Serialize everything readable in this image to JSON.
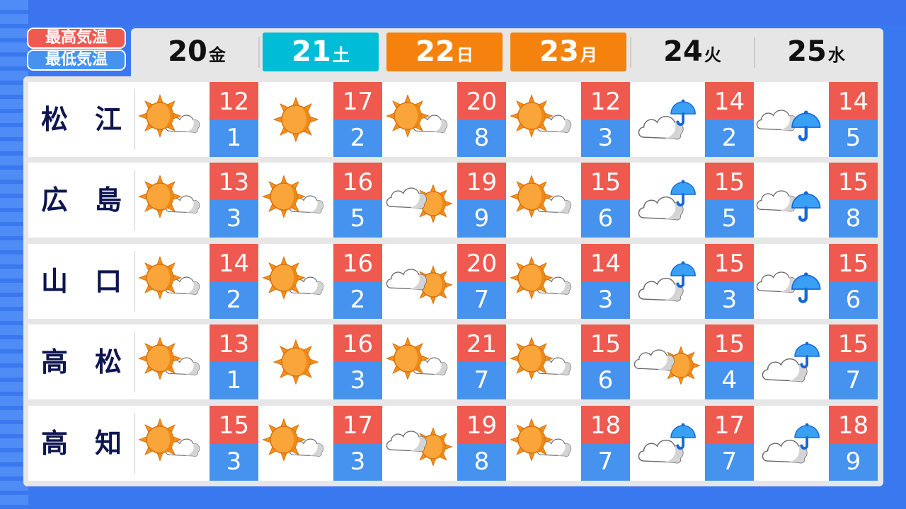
{
  "legend": {
    "high": "最高気温",
    "low": "最低気温"
  },
  "colors": {
    "high": "#ef5a50",
    "low": "#4593ee",
    "saturday": "#00bcd6",
    "holiday": "#f5820c",
    "city_text": "#0e1550"
  },
  "days": [
    {
      "date": "20",
      "weekday": "金",
      "style": "plain"
    },
    {
      "date": "21",
      "weekday": "土",
      "style": "sat"
    },
    {
      "date": "22",
      "weekday": "日",
      "style": "hol"
    },
    {
      "date": "23",
      "weekday": "月",
      "style": "hol"
    },
    {
      "date": "24",
      "weekday": "火",
      "style": "plain"
    },
    {
      "date": "25",
      "weekday": "水",
      "style": "plain"
    }
  ],
  "cities": [
    {
      "name": "松　江",
      "forecast": [
        {
          "icon": "sunny-then-cloudy",
          "high": "12",
          "low": "1"
        },
        {
          "icon": "sunny",
          "high": "17",
          "low": "2"
        },
        {
          "icon": "sunny-then-cloudy",
          "high": "20",
          "low": "8"
        },
        {
          "icon": "sunny-then-cloudy",
          "high": "12",
          "low": "3"
        },
        {
          "icon": "cloudy-chance-rain",
          "high": "14",
          "low": "2"
        },
        {
          "icon": "cloudy-then-rain",
          "high": "14",
          "low": "5"
        }
      ]
    },
    {
      "name": "広　島",
      "forecast": [
        {
          "icon": "sunny-then-cloudy",
          "high": "13",
          "low": "3"
        },
        {
          "icon": "sunny-then-cloudy",
          "high": "16",
          "low": "5"
        },
        {
          "icon": "cloudy-then-sunny",
          "high": "19",
          "low": "9"
        },
        {
          "icon": "sunny-then-cloudy",
          "high": "15",
          "low": "6"
        },
        {
          "icon": "cloudy-chance-rain",
          "high": "15",
          "low": "5"
        },
        {
          "icon": "cloudy-then-rain",
          "high": "15",
          "low": "8"
        }
      ]
    },
    {
      "name": "山　口",
      "forecast": [
        {
          "icon": "sunny-then-cloudy",
          "high": "14",
          "low": "2"
        },
        {
          "icon": "sunny-then-cloudy",
          "high": "16",
          "low": "2"
        },
        {
          "icon": "cloudy-then-sunny",
          "high": "20",
          "low": "7"
        },
        {
          "icon": "sunny-then-cloudy",
          "high": "14",
          "low": "3"
        },
        {
          "icon": "cloudy-chance-rain",
          "high": "15",
          "low": "3"
        },
        {
          "icon": "cloudy-then-rain",
          "high": "15",
          "low": "6"
        }
      ]
    },
    {
      "name": "高　松",
      "forecast": [
        {
          "icon": "sunny-then-cloudy",
          "high": "13",
          "low": "1"
        },
        {
          "icon": "sunny",
          "high": "16",
          "low": "3"
        },
        {
          "icon": "sunny-then-cloudy",
          "high": "21",
          "low": "7"
        },
        {
          "icon": "sunny-then-cloudy",
          "high": "15",
          "low": "6"
        },
        {
          "icon": "cloudy-then-sunny",
          "high": "15",
          "low": "4"
        },
        {
          "icon": "cloudy-chance-rain",
          "high": "15",
          "low": "7"
        }
      ]
    },
    {
      "name": "高　知",
      "forecast": [
        {
          "icon": "sunny-then-cloudy",
          "high": "15",
          "low": "3"
        },
        {
          "icon": "sunny-then-cloudy",
          "high": "17",
          "low": "3"
        },
        {
          "icon": "cloudy-then-sunny",
          "high": "19",
          "low": "8"
        },
        {
          "icon": "sunny-then-cloudy",
          "high": "18",
          "low": "7"
        },
        {
          "icon": "cloudy-chance-rain",
          "high": "17",
          "low": "7"
        },
        {
          "icon": "cloudy-chance-rain",
          "high": "18",
          "low": "9"
        }
      ]
    }
  ]
}
